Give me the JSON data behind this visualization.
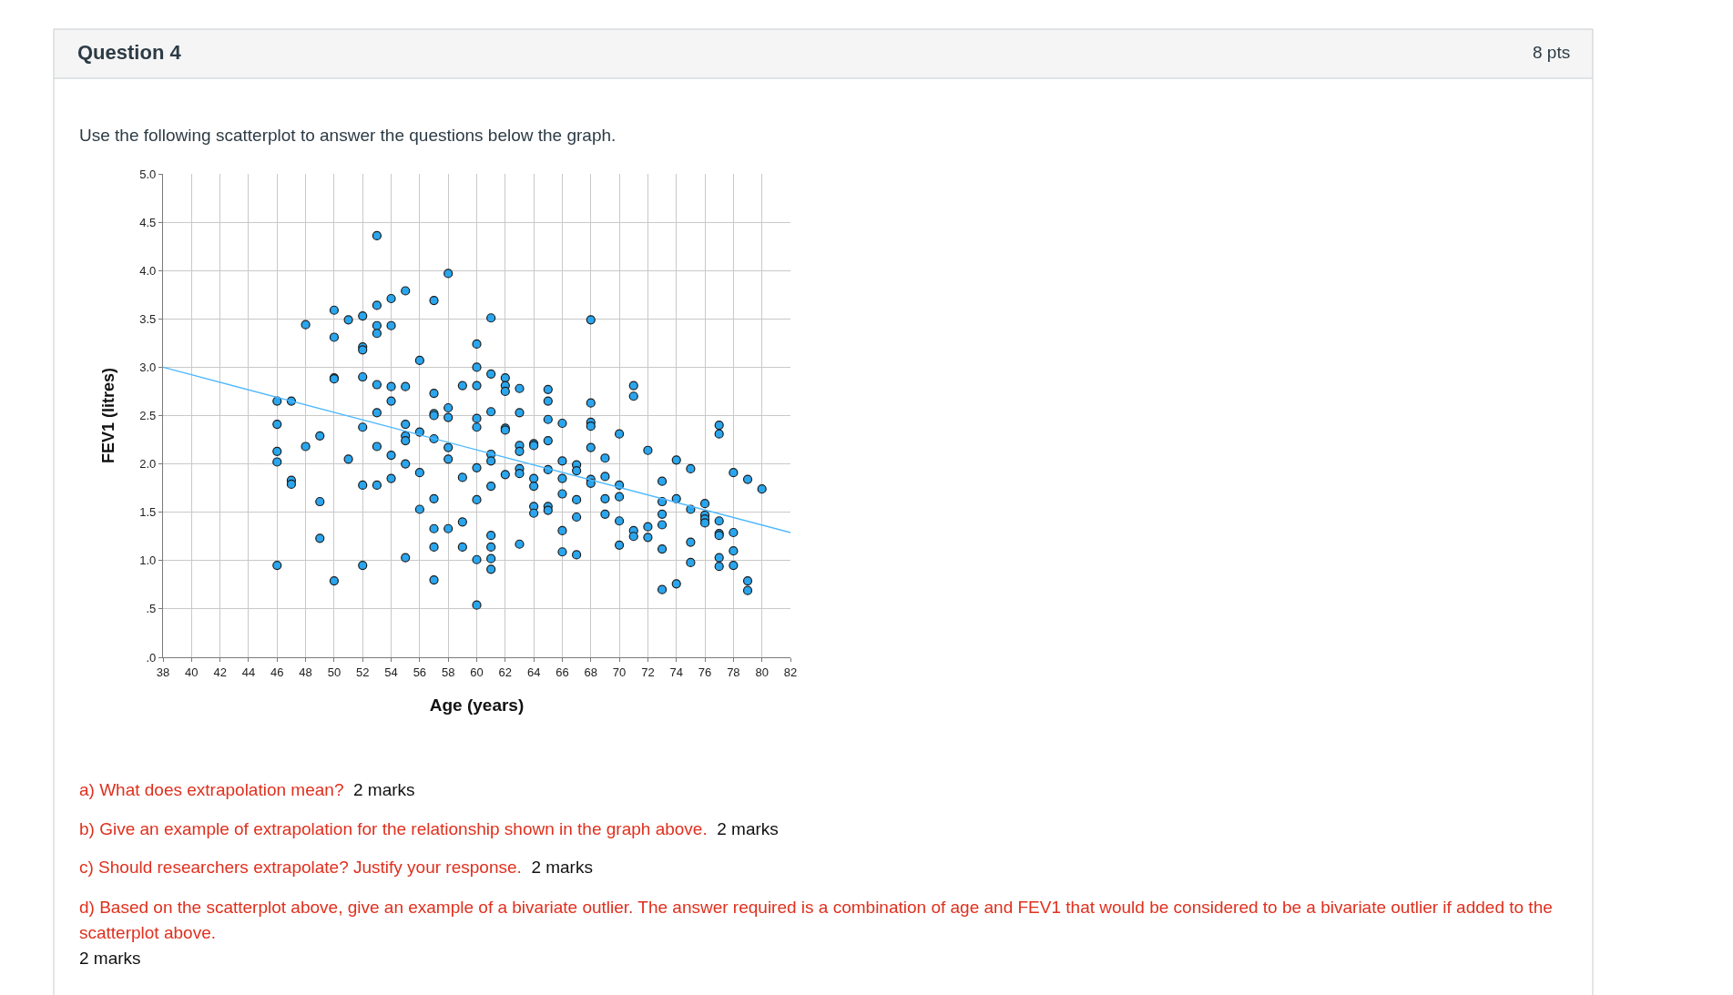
{
  "chart_data": {
    "type": "scatter",
    "title": "Question 4",
    "subtitle": "Use the following scatterplot to answer the questions below the graph.",
    "xlabel": "Age (years)",
    "ylabel": "FEV1 (litres)",
    "annotations": [
      "8 pts",
      "a) What does extrapolation mean?",
      "2 marks",
      "b) Give an example of extrapolation for the relationship shown in the graph above.",
      "2 marks",
      "c) Should researchers extrapolate? Justify your response.",
      "2 marks",
      "d) Based on the scatterplot above, give an example of a bivariate outlier. The answer required is a combination of age and FEV1 that would be considered to be a bivariate outlier if added to the scatterplot above.",
      "2 marks"
    ],
    "xlim": [
      38,
      82
    ],
    "xticks": [
      38,
      40,
      42,
      44,
      46,
      48,
      50,
      52,
      54,
      56,
      58,
      60,
      62,
      64,
      66,
      68,
      70,
      72,
      74,
      76,
      78,
      80,
      82
    ],
    "ylim": [
      0,
      5
    ],
    "yticks": [
      {
        "value": 0,
        "label": ".0"
      },
      {
        "value": 0.5,
        "label": ".5"
      },
      {
        "value": 1,
        "label": "1.0"
      },
      {
        "value": 1.5,
        "label": "1.5"
      },
      {
        "value": 2,
        "label": "2.0"
      },
      {
        "value": 2.5,
        "label": "2.5"
      },
      {
        "value": 3,
        "label": "3.0"
      },
      {
        "value": 3.5,
        "label": "3.5"
      },
      {
        "value": 4,
        "label": "4.0"
      },
      {
        "value": 4.5,
        "label": "4.5"
      },
      {
        "value": 5,
        "label": "5.0"
      }
    ],
    "grid": true,
    "series": [
      {
        "color": "#2aa6ee",
        "marker": "circle",
        "x": [
          46,
          46,
          46,
          46,
          46,
          47,
          47,
          47,
          48,
          48,
          49,
          49,
          49,
          50,
          50,
          50,
          50,
          50,
          51,
          51,
          52,
          52,
          52,
          52,
          52,
          52,
          52,
          53,
          53,
          53,
          53,
          53,
          53,
          53,
          53,
          54,
          54,
          54,
          54,
          54,
          54,
          55,
          55,
          55,
          55,
          55,
          55,
          55,
          56,
          56,
          56,
          56,
          57,
          57,
          57,
          57,
          57,
          57,
          57,
          57,
          57,
          58,
          58,
          58,
          58,
          58,
          58,
          59,
          59,
          59,
          59,
          60,
          60,
          60,
          60,
          60,
          60,
          60,
          60,
          60,
          61,
          61,
          61,
          61,
          61,
          61,
          61,
          61,
          61,
          61,
          62,
          62,
          62,
          62,
          62,
          62,
          63,
          63,
          63,
          63,
          63,
          63,
          63,
          64,
          64,
          64,
          64,
          64,
          64,
          65,
          65,
          65,
          65,
          65,
          65,
          65,
          66,
          66,
          66,
          66,
          66,
          66,
          67,
          67,
          67,
          67,
          67,
          68,
          68,
          68,
          68,
          68,
          68,
          68,
          69,
          69,
          69,
          69,
          70,
          70,
          70,
          70,
          70,
          71,
          71,
          71,
          71,
          72,
          72,
          72,
          73,
          73,
          73,
          73,
          73,
          73,
          74,
          74,
          74,
          75,
          75,
          75,
          75,
          76,
          76,
          76,
          76,
          77,
          77,
          77,
          77,
          77,
          77,
          77,
          78,
          78,
          78,
          78,
          79,
          79,
          79,
          80
        ],
        "values": [
          2.65,
          2.41,
          2.13,
          2.02,
          0.95,
          2.65,
          1.83,
          1.79,
          3.44,
          2.18,
          2.29,
          1.61,
          1.23,
          3.59,
          3.31,
          2.89,
          2.88,
          0.79,
          3.49,
          2.05,
          3.53,
          3.21,
          3.18,
          2.9,
          2.38,
          1.78,
          0.95,
          4.36,
          3.64,
          3.43,
          3.35,
          2.82,
          2.53,
          2.18,
          1.78,
          3.71,
          3.43,
          2.8,
          2.65,
          2.09,
          1.85,
          3.79,
          2.8,
          2.41,
          2.29,
          2.24,
          2.0,
          1.03,
          3.07,
          2.33,
          1.91,
          1.53,
          3.69,
          2.73,
          2.52,
          2.5,
          2.26,
          1.64,
          1.33,
          1.14,
          0.8,
          3.97,
          2.58,
          2.48,
          2.17,
          2.05,
          1.33,
          2.81,
          1.86,
          1.4,
          1.14,
          3.24,
          3.0,
          2.81,
          2.47,
          2.38,
          1.96,
          1.63,
          1.01,
          0.54,
          3.51,
          2.93,
          2.54,
          2.1,
          2.03,
          1.77,
          1.26,
          1.14,
          1.02,
          0.91,
          2.89,
          2.81,
          2.75,
          2.37,
          2.35,
          1.89,
          2.78,
          2.53,
          2.19,
          2.13,
          1.95,
          1.9,
          1.17,
          2.21,
          2.19,
          1.85,
          1.77,
          1.56,
          1.49,
          2.77,
          2.65,
          2.46,
          2.24,
          1.94,
          1.56,
          1.52,
          2.42,
          2.03,
          1.85,
          1.69,
          1.31,
          1.09,
          1.99,
          1.93,
          1.63,
          1.45,
          1.06,
          3.49,
          2.63,
          2.43,
          2.39,
          2.17,
          1.84,
          1.8,
          2.06,
          1.87,
          1.64,
          1.48,
          2.31,
          1.78,
          1.66,
          1.41,
          1.16,
          2.81,
          2.7,
          1.31,
          1.25,
          2.14,
          1.35,
          1.24,
          1.82,
          1.61,
          1.48,
          1.37,
          1.12,
          0.7,
          2.04,
          1.64,
          0.76,
          1.95,
          1.53,
          1.19,
          0.98,
          1.59,
          1.47,
          1.43,
          1.39,
          2.4,
          2.31,
          1.41,
          1.28,
          1.26,
          1.03,
          0.94,
          1.91,
          1.29,
          1.1,
          0.95,
          1.84,
          0.79,
          0.69,
          1.74
        ]
      },
      {
        "type": "line",
        "color": "#4db8ff",
        "x": [
          38,
          82
        ],
        "values": [
          3.0,
          1.29
        ]
      }
    ]
  }
}
